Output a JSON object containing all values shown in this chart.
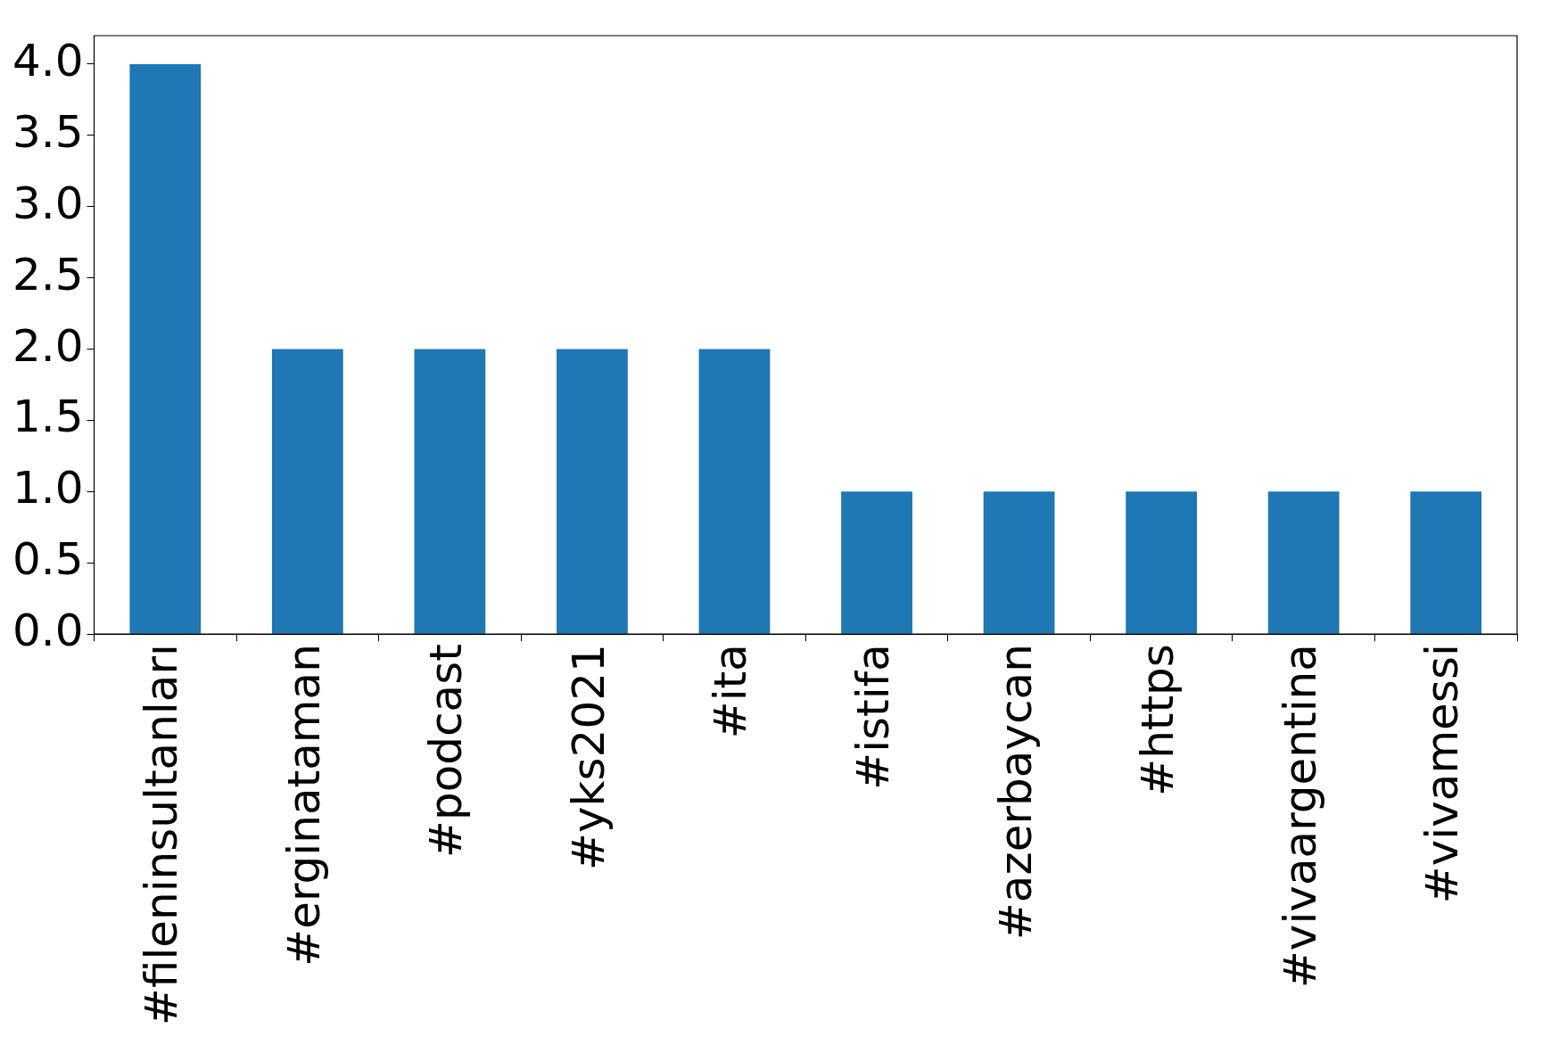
{
  "chart_data": {
    "type": "bar",
    "categories": [
      "#fileninsultanları",
      "#erginataman",
      "#podcast",
      "#yks2021",
      "#ita",
      "#istifa",
      "#azerbaycan",
      "#https",
      "#vivaargentina",
      "#vivamessi"
    ],
    "values": [
      4,
      2,
      2,
      2,
      2,
      1,
      1,
      1,
      1,
      1
    ],
    "color": "#1f77b4",
    "ylim": [
      0,
      4.2
    ],
    "yticks": [
      {
        "value": 0,
        "label": "0.0"
      },
      {
        "value": 0.5,
        "label": "0.5"
      },
      {
        "value": 1,
        "label": "1.0"
      },
      {
        "value": 1.5,
        "label": "1.5"
      },
      {
        "value": 2,
        "label": "2.0"
      },
      {
        "value": 2.5,
        "label": "2.5"
      },
      {
        "value": 3,
        "label": "3.0"
      },
      {
        "value": 3.5,
        "label": "3.5"
      },
      {
        "value": 4,
        "label": "4.0"
      }
    ],
    "grid": false,
    "legend": false
  }
}
